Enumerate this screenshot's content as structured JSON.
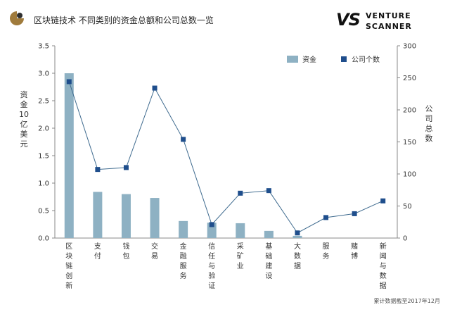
{
  "header": {
    "title": "区块链技术 不同类别的资金总额和公司总数一览",
    "brand_mark": "VS",
    "brand_line1": "VENTURE",
    "brand_line2": "SCANNER"
  },
  "footnote": "累计数据截至2017年12月",
  "colors": {
    "bar": "#8eb1c3",
    "line": "#3f6b8f",
    "marker": "#1f4e8c",
    "axis": "#888888",
    "logo": "#a07b3c"
  },
  "chart_data": {
    "type": "bar",
    "categories": [
      "区块链创新",
      "支付",
      "钱包",
      "交易",
      "金融服务",
      "信任与验证",
      "采矿业",
      "基础建设",
      "大数据",
      "服务",
      "赌博",
      "新闻与数据"
    ],
    "series": [
      {
        "name": "资金",
        "type": "bar",
        "axis": "left",
        "values": [
          3.0,
          0.84,
          0.8,
          0.73,
          0.31,
          0.28,
          0.27,
          0.13,
          0.04,
          0.0,
          0.0,
          0.0
        ]
      },
      {
        "name": "公司个数",
        "type": "line",
        "axis": "right",
        "values": [
          244,
          107,
          110,
          234,
          154,
          21,
          70,
          74,
          8,
          32,
          38,
          58
        ]
      }
    ],
    "ylabel": "资金10亿美元",
    "y2label": "公司总数",
    "ylim": [
      0,
      3.5
    ],
    "y2lim": [
      0,
      300
    ],
    "yticks": [
      "0.0",
      "0.5",
      "1.0",
      "1.5",
      "2.0",
      "2.5",
      "3.0",
      "3.5"
    ],
    "y2ticks": [
      "0",
      "50",
      "100",
      "150",
      "200",
      "250",
      "300"
    ],
    "legend": "top-right",
    "grid": false
  }
}
